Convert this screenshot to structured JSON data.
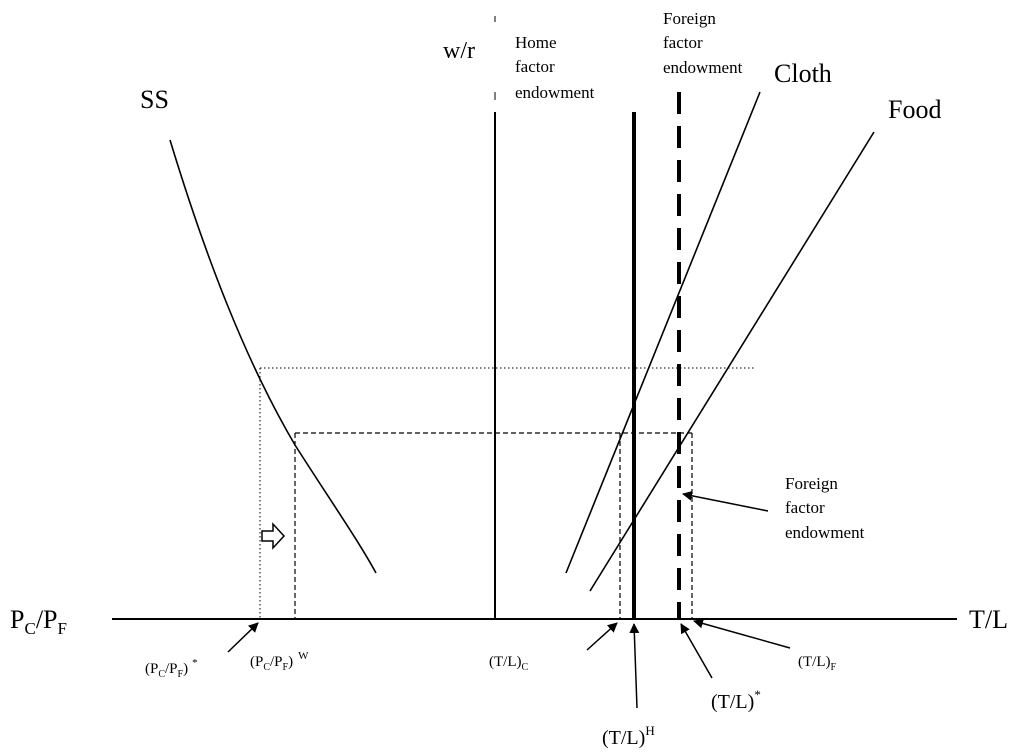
{
  "axes": {
    "left_label_main": "P",
    "left_label_sub1": "C",
    "left_label_slash": "/P",
    "left_label_sub2": "F",
    "right_label": "T/L",
    "top_label": "w/r"
  },
  "curves": {
    "ss_label": "SS",
    "cloth_label": "Cloth",
    "food_label": "Food"
  },
  "endowments": {
    "home_line1": "Home",
    "home_line2": "factor",
    "home_line3": "endowment",
    "foreign_top_line1": "Foreign",
    "foreign_top_line2": "factor",
    "foreign_top_line3": "endowment",
    "foreign_right_line1": "Foreign",
    "foreign_right_line2": "factor",
    "foreign_right_line3": "endowment"
  },
  "axis_marks": {
    "pc_pf_star_open": "(P",
    "pc_pf_star_sub1": "C",
    "pc_pf_star_mid": "/P",
    "pc_pf_star_sub2": "F",
    "pc_pf_star_close": ")",
    "pc_pf_star_sup": "*",
    "pc_pf_w_open": "(P",
    "pc_pf_w_sub1": "C",
    "pc_pf_w_mid": "/P",
    "pc_pf_w_sub2": "F",
    "pc_pf_w_close": ")",
    "pc_pf_w_sup": "W",
    "tl_c_main": "(T/L)",
    "tl_c_sub": "C",
    "tl_h_main": "(T/L)",
    "tl_h_sup": "H",
    "tl_star_main": "(T/L)",
    "tl_star_sup": "*",
    "tl_f_main": "(T/L)",
    "tl_f_sub": "F"
  }
}
